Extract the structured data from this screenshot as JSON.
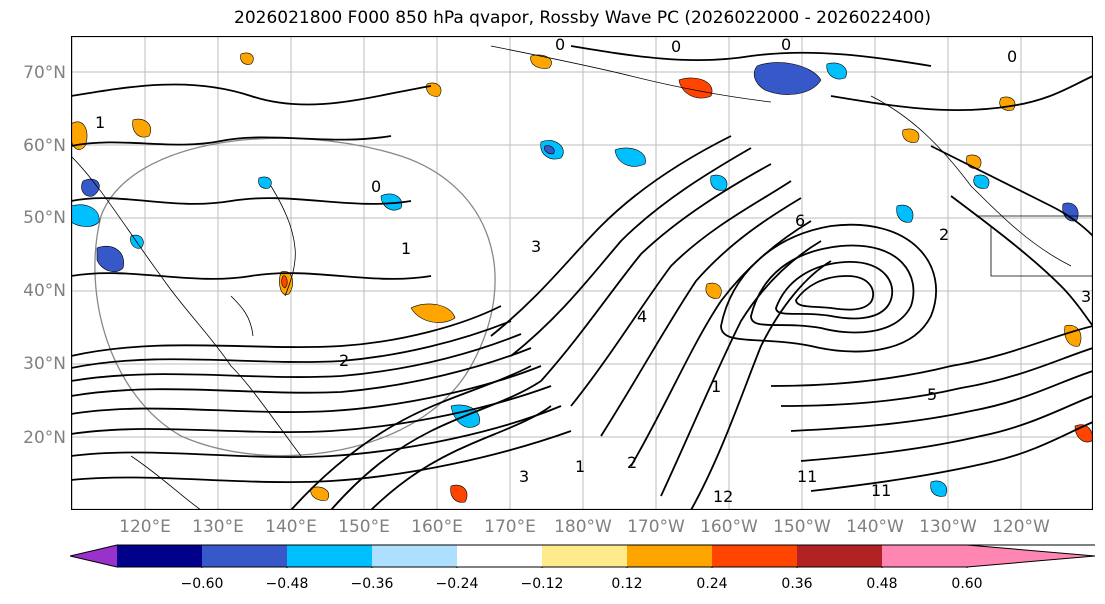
{
  "title": "2026021800 F000 850 hPa qvapor, Rossby Wave PC (2026022000 - 2026022400)",
  "lat_labels": [
    "70°N",
    "60°N",
    "50°N",
    "40°N",
    "30°N",
    "20°N"
  ],
  "lon_labels": [
    "120°E",
    "130°E",
    "140°E",
    "150°E",
    "160°E",
    "170°E",
    "180°W",
    "170°W",
    "160°W",
    "150°W",
    "140°W",
    "130°W",
    "120°W"
  ],
  "contour_labels": [
    "0",
    "0",
    "0",
    "1",
    "0",
    "0",
    "1",
    "6",
    "2",
    "4",
    "1",
    "3",
    "5",
    "11",
    "12",
    "3",
    "2",
    "1",
    "11",
    "2",
    "3"
  ],
  "colorbar": {
    "ticks": [
      "−0.60",
      "−0.48",
      "−0.36",
      "−0.24",
      "−0.12",
      "0.12",
      "0.24",
      "0.36",
      "0.48",
      "0.60"
    ],
    "colors": [
      "#9932CC",
      "#00008B",
      "#3658C9",
      "#00BFFF",
      "#ADDFFF",
      "#FFFFFF",
      "#FFEB8C",
      "#FFA500",
      "#FF4500",
      "#B22222",
      "#FF86B3"
    ]
  }
}
